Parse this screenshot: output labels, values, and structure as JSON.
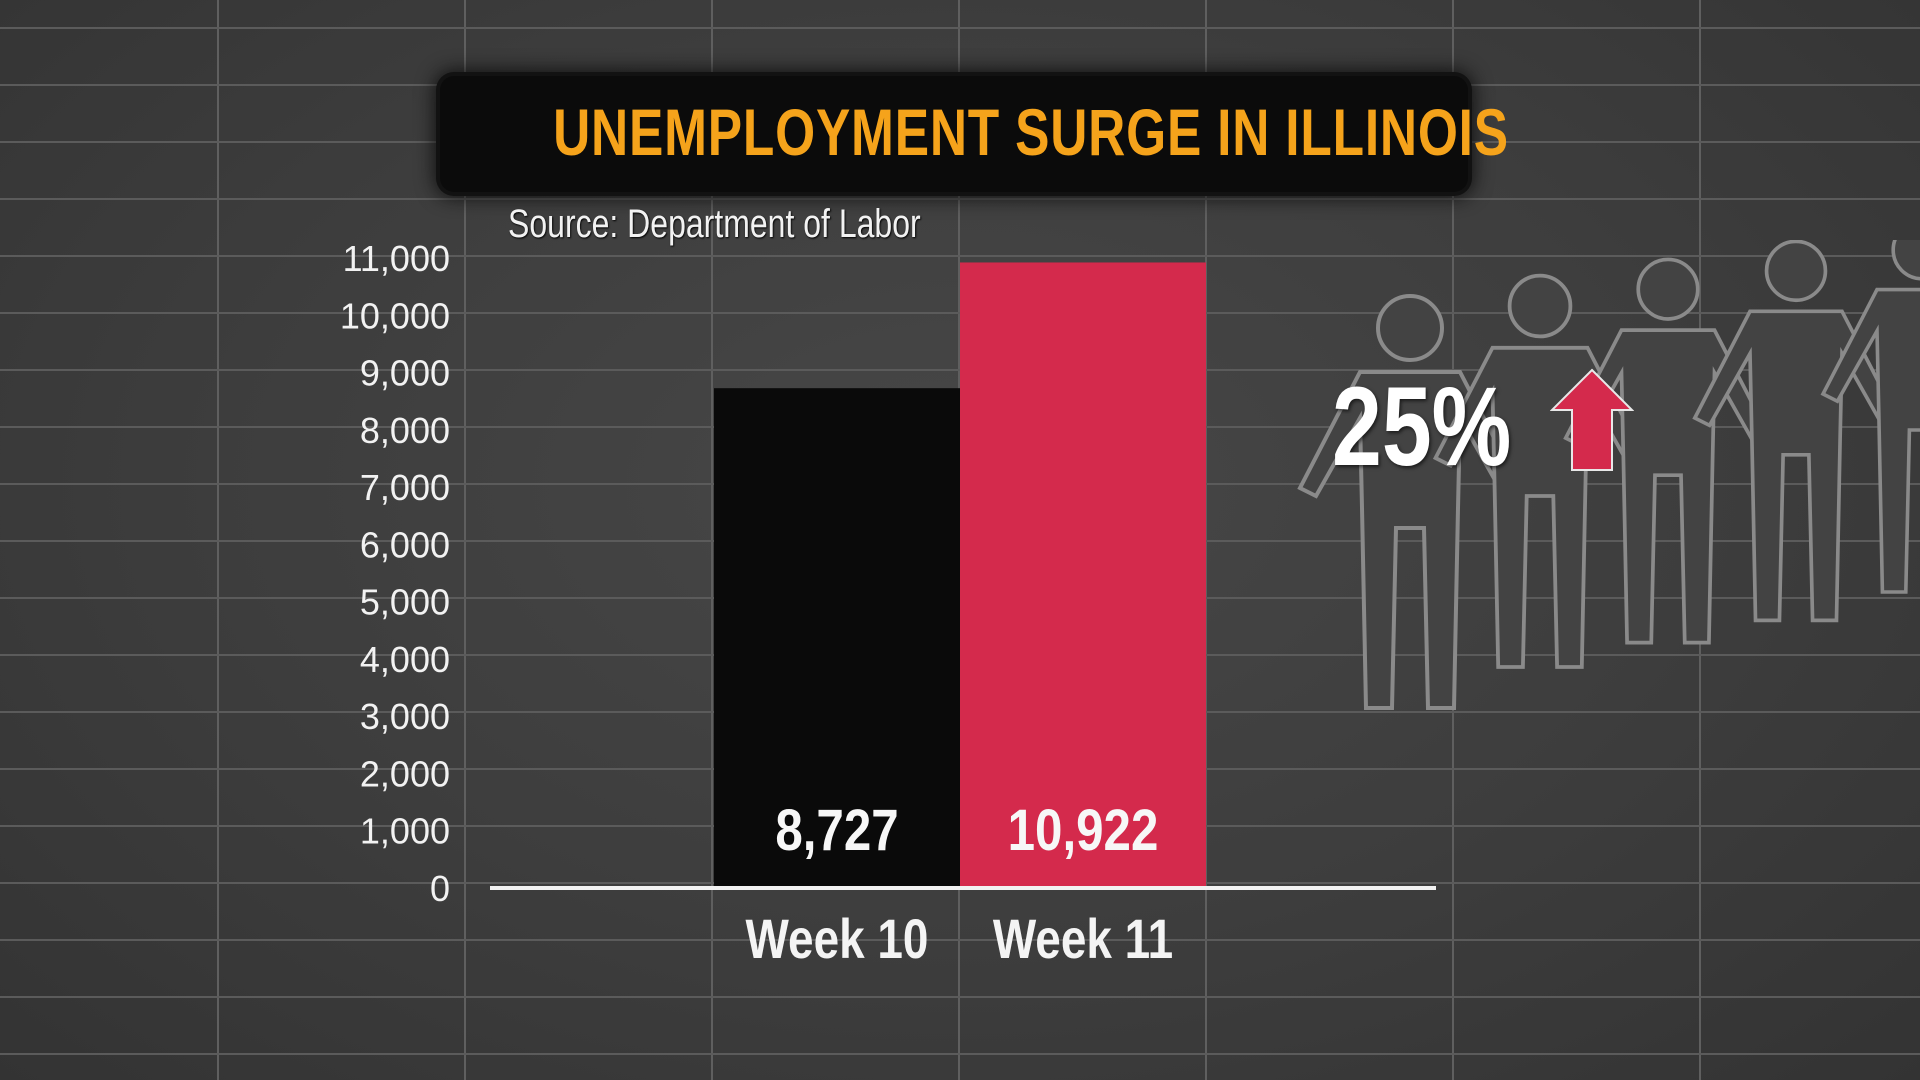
{
  "title": "UNEMPLOYMENT SURGE IN ILLINOIS",
  "source": "Source: Department of Labor",
  "change_label": "25%",
  "icons": {
    "change_direction": "up-arrow-icon",
    "decoration": "people-icon"
  },
  "colors": {
    "title": "#f5a31b",
    "week10_bar": "#0a0a0a",
    "week11_bar": "#d42a4c",
    "arrow": "#d42a4c"
  },
  "chart_data": {
    "type": "bar",
    "title": "UNEMPLOYMENT SURGE IN ILLINOIS",
    "xlabel": "",
    "ylabel": "",
    "categories": [
      "Week 10",
      "Week 11"
    ],
    "values": [
      8727,
      10922
    ],
    "value_labels": [
      "8,727",
      "10,922"
    ],
    "ylim": [
      0,
      11000
    ],
    "yticks": [
      0,
      1000,
      2000,
      3000,
      4000,
      5000,
      6000,
      7000,
      8000,
      9000,
      10000,
      11000
    ],
    "ytick_labels": [
      "0",
      "1,000",
      "2,000",
      "3,000",
      "4,000",
      "5,000",
      "6,000",
      "7,000",
      "8,000",
      "9,000",
      "10,000",
      "11,000"
    ],
    "grid": true,
    "legend": "none"
  }
}
